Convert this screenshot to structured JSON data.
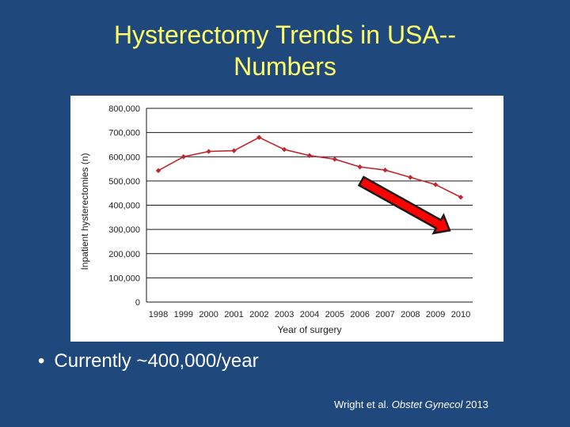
{
  "slide": {
    "title_line1": "Hysterectomy Trends in USA--",
    "title_line2": "Numbers",
    "bullet_symbol": "•",
    "bullet_text": "Currently ~400,000/year",
    "citation_authors": "Wright et al.",
    "citation_journal": "Obstet Gynecol",
    "citation_year": "2013"
  },
  "colors": {
    "background": "#1f497d",
    "title": "#ffff66",
    "series": "#c0272d",
    "arrow_fill": "#ff0000",
    "arrow_stroke": "#1a1a1a"
  },
  "chart_data": {
    "type": "line",
    "title": "",
    "xlabel": "Year of surgery",
    "ylabel": "Inpatient hysterectomies (n)",
    "x": [
      "1998",
      "1999",
      "2000",
      "2001",
      "2002",
      "2003",
      "2004",
      "2005",
      "2006",
      "2007",
      "2008",
      "2009",
      "2010"
    ],
    "series": [
      {
        "values": [
          543000,
          600000,
          622000,
          625000,
          680000,
          630000,
          605000,
          590000,
          558000,
          545000,
          515000,
          485000,
          433000
        ]
      }
    ],
    "ylim": [
      0,
      800000
    ],
    "yticks": [
      0,
      100000,
      200000,
      300000,
      400000,
      500000,
      600000,
      700000,
      800000
    ],
    "ytick_labels": [
      "0",
      "100,000",
      "200,000",
      "300,000",
      "400,000",
      "500,000",
      "600,000",
      "700,000",
      "800,000"
    ],
    "grid": true,
    "legend": "none",
    "annotation": "red-down-arrow"
  }
}
